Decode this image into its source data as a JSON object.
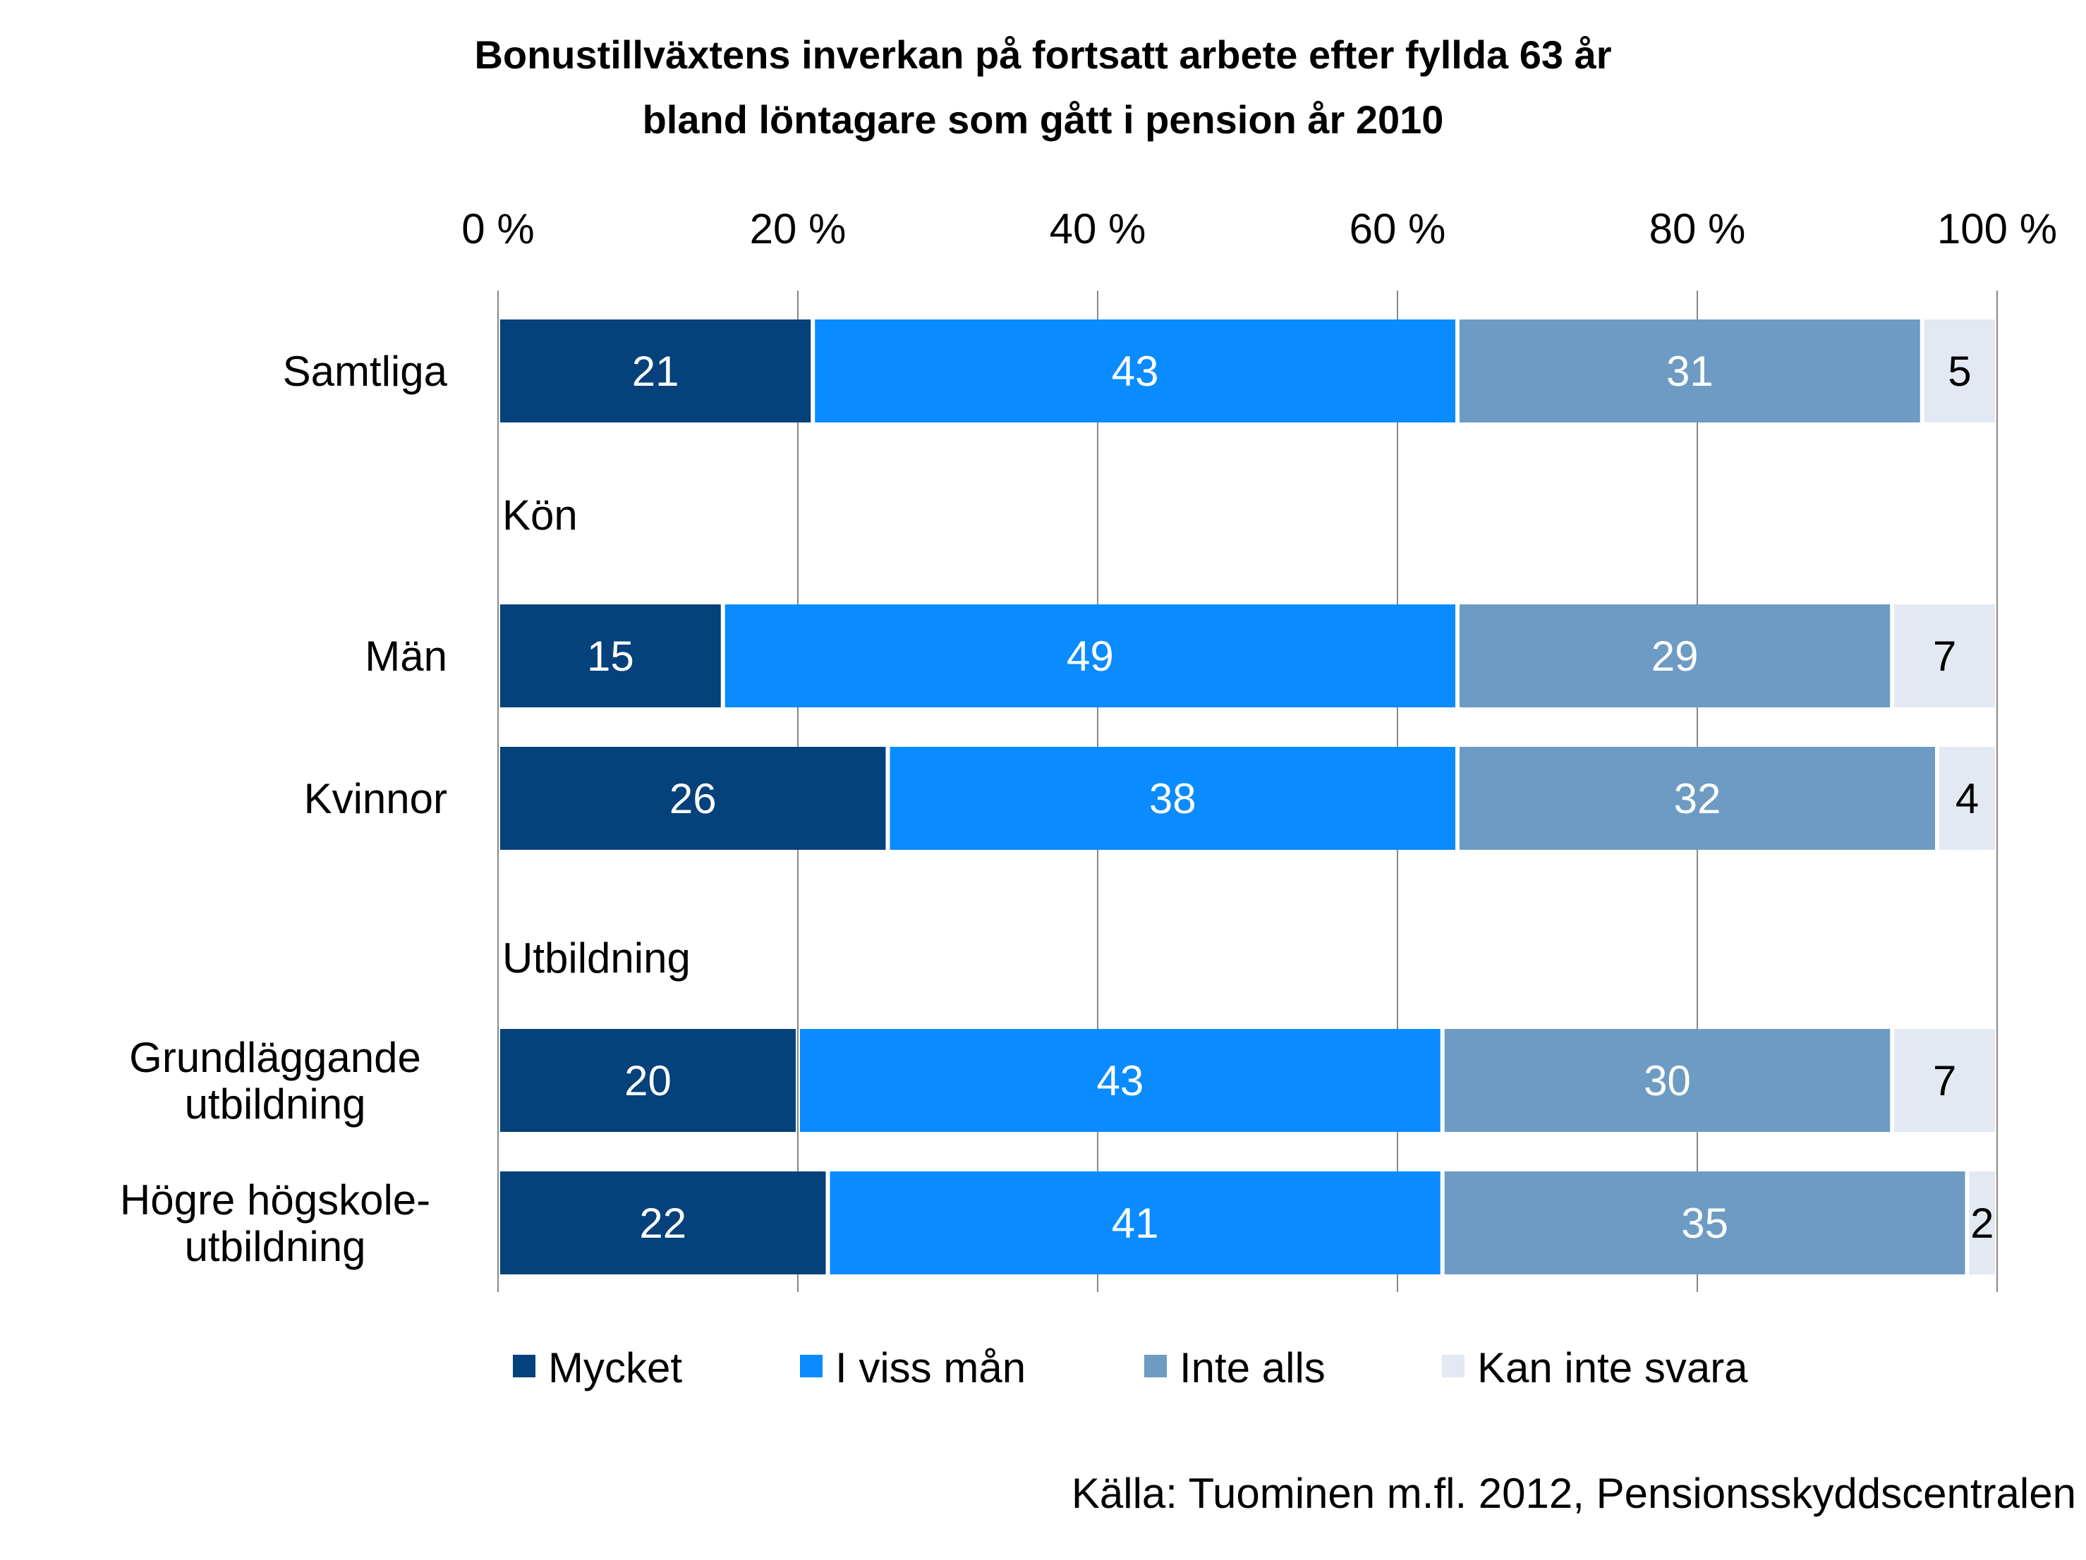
{
  "chart_data": {
    "type": "bar",
    "orientation": "horizontal",
    "stacked": "percent",
    "title": "Bonustillväxtens inverkan på fortsatt arbete efter fyllda 63 år bland löntagare som gått i pension år 2010",
    "title_lines": [
      "Bonustillväxtens inverkan på fortsatt arbete efter fyllda 63 år",
      "bland löntagare som gått i pension år 2010"
    ],
    "x_ticks": [
      "0 %",
      "20 %",
      "40 %",
      "60 %",
      "80 %",
      "100 %"
    ],
    "xlim": [
      0,
      100
    ],
    "x_axis_position": "top",
    "grid": true,
    "legend_position": "bottom",
    "series": [
      {
        "name": "Mycket",
        "color": "#05417A"
      },
      {
        "name": "I viss mån",
        "color": "#0A8BFF"
      },
      {
        "name": "Inte alls",
        "color": "#6D9BC4"
      },
      {
        "name": "Kan inte svara",
        "color": "#E2E9F2"
      }
    ],
    "rows": [
      {
        "kind": "bar",
        "label": [
          "Samtliga"
        ],
        "values": [
          21,
          43,
          31,
          5
        ]
      },
      {
        "kind": "group",
        "label": "Kön"
      },
      {
        "kind": "bar",
        "label": [
          "Män"
        ],
        "values": [
          15,
          49,
          29,
          7
        ]
      },
      {
        "kind": "bar",
        "label": [
          "Kvinnor"
        ],
        "values": [
          26,
          38,
          32,
          4
        ]
      },
      {
        "kind": "group",
        "label": "Utbildning"
      },
      {
        "kind": "bar",
        "label": [
          "Grundläggande",
          "utbildning"
        ],
        "values": [
          20,
          43,
          30,
          7
        ]
      },
      {
        "kind": "bar",
        "label": [
          "Högre högskole-",
          "utbildning"
        ],
        "values": [
          22,
          41,
          35,
          2
        ]
      }
    ]
  },
  "source": "Källa: Tuominen m.fl. 2012, Pensionsskyddscentralen"
}
